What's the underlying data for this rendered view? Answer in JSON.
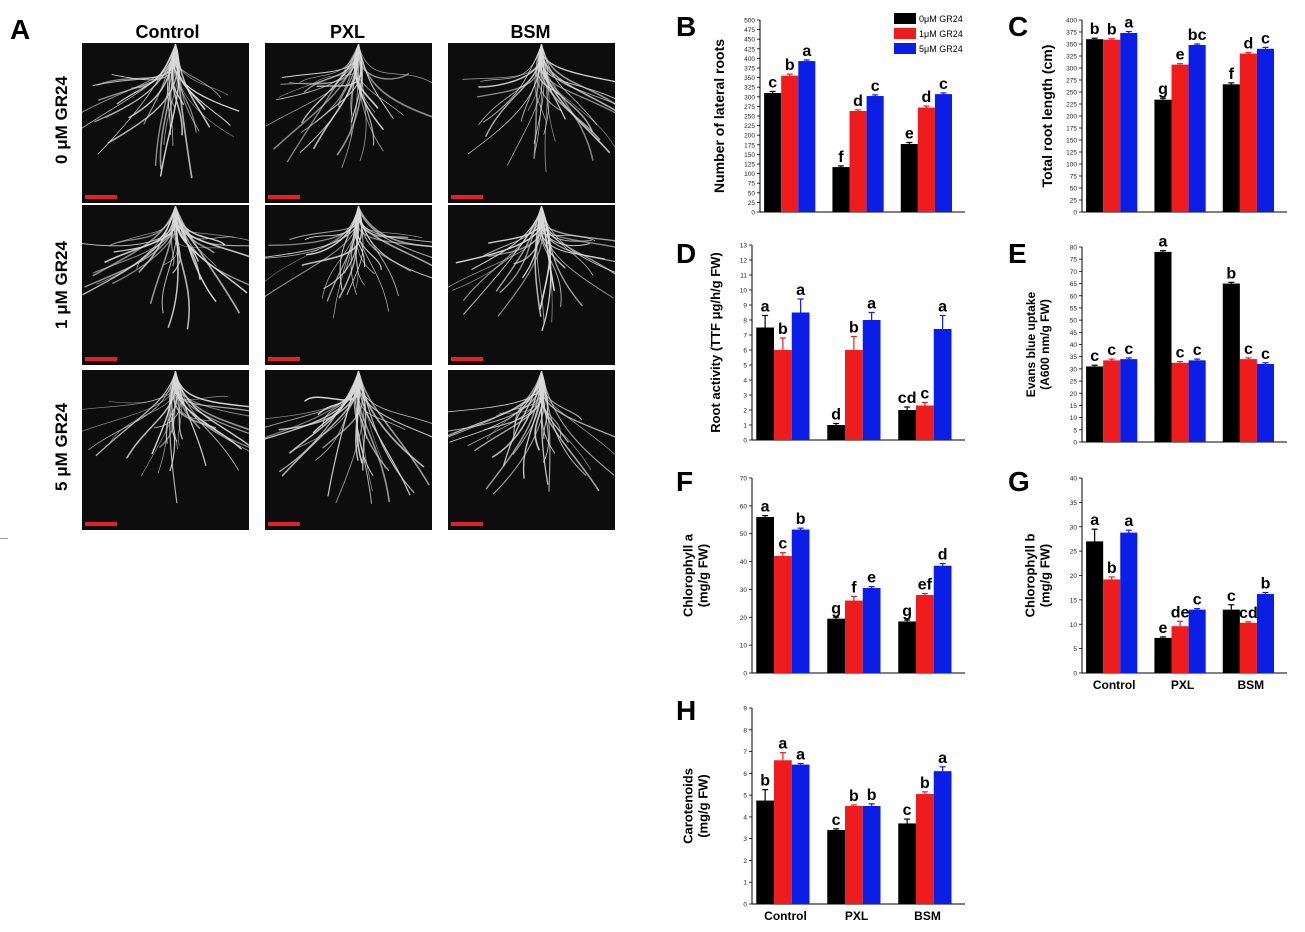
{
  "panel_a": {
    "letter": "A",
    "columns": [
      "Control",
      "PXL",
      "BSM"
    ],
    "rows": [
      "0 μM GR24",
      "1 μM GR24",
      "5 μM GR24"
    ],
    "scale_bar_color": "#e0202a"
  },
  "legend": [
    "0μM GR24",
    "1μM GR24",
    "5μM GR24"
  ],
  "colors": [
    "#000000",
    "#ee1c1c",
    "#0a1ee6"
  ],
  "chart_data": [
    {
      "letter": "B",
      "type": "bar",
      "ylabel": "Number of lateral roots",
      "categories": [
        "Control",
        "PXL",
        "BSM"
      ],
      "ylim": [
        0,
        500
      ],
      "yticks": [
        0,
        25,
        50,
        75,
        100,
        125,
        150,
        175,
        200,
        225,
        250,
        275,
        300,
        325,
        350,
        375,
        400,
        425,
        450,
        475,
        500
      ],
      "series": [
        {
          "name": "0μM GR24",
          "values": [
            310,
            117,
            177
          ],
          "errors": [
            4,
            3,
            4
          ]
        },
        {
          "name": "1μM GR24",
          "values": [
            355,
            263,
            272
          ],
          "errors": [
            4,
            3,
            4
          ]
        },
        {
          "name": "5μM GR24",
          "values": [
            393,
            302,
            307
          ],
          "errors": [
            3,
            3,
            3
          ]
        }
      ],
      "labels": [
        [
          "c",
          "b",
          "a"
        ],
        [
          "f",
          "d",
          "c"
        ],
        [
          "e",
          "d",
          "c"
        ]
      ],
      "show_legend": true
    },
    {
      "letter": "C",
      "type": "bar",
      "ylabel": "Total root length (cm)",
      "categories": [
        "Control",
        "PXL",
        "BSM"
      ],
      "ylim": [
        0,
        400
      ],
      "yticks": [
        0,
        25,
        50,
        75,
        100,
        125,
        150,
        175,
        200,
        225,
        250,
        275,
        300,
        325,
        350,
        375,
        400
      ],
      "series": [
        {
          "name": "0μM GR24",
          "values": [
            360,
            234,
            266
          ],
          "errors": [
            2,
            3,
            3
          ]
        },
        {
          "name": "1μM GR24",
          "values": [
            359,
            307,
            330
          ],
          "errors": [
            2,
            2,
            2
          ]
        },
        {
          "name": "5μM GR24",
          "values": [
            373,
            348,
            340
          ],
          "errors": [
            3,
            2,
            3
          ]
        }
      ],
      "labels": [
        [
          "b",
          "b",
          "a"
        ],
        [
          "g",
          "e",
          "bc"
        ],
        [
          "f",
          "d",
          "c"
        ]
      ]
    },
    {
      "letter": "D",
      "type": "bar",
      "ylabel": "Root activity (TTF μg/h/g FW)",
      "categories": [
        "Control",
        "PXL",
        "BSM"
      ],
      "ylim": [
        0,
        13
      ],
      "yticks": [
        0,
        1,
        2,
        3,
        4,
        5,
        6,
        7,
        8,
        9,
        10,
        11,
        12,
        13
      ],
      "series": [
        {
          "name": "0μM GR24",
          "values": [
            7.5,
            1.0,
            2.0
          ],
          "errors": [
            0.8,
            0.1,
            0.2
          ]
        },
        {
          "name": "1μM GR24",
          "values": [
            6.0,
            6.0,
            2.3
          ],
          "errors": [
            0.8,
            0.9,
            0.2
          ]
        },
        {
          "name": "5μM GR24",
          "values": [
            8.5,
            8.0,
            7.4
          ],
          "errors": [
            0.9,
            0.5,
            0.9
          ]
        }
      ],
      "labels": [
        [
          "a",
          "b",
          "a"
        ],
        [
          "d",
          "b",
          "a"
        ],
        [
          "cd",
          "c",
          "a"
        ]
      ]
    },
    {
      "letter": "E",
      "type": "bar",
      "ylabel": "Evans blue uptake (A600 nm/g FW)",
      "categories": [
        "Control",
        "PXL",
        "BSM"
      ],
      "ylim": [
        0,
        80
      ],
      "yticks": [
        0,
        5,
        10,
        15,
        20,
        25,
        30,
        35,
        40,
        45,
        50,
        55,
        60,
        65,
        70,
        75,
        80
      ],
      "series": [
        {
          "name": "0μM GR24",
          "values": [
            31,
            78,
            65
          ],
          "errors": [
            0.5,
            0.5,
            0.5
          ]
        },
        {
          "name": "1μM GR24",
          "values": [
            33.5,
            32.5,
            34
          ],
          "errors": [
            0.5,
            0.5,
            0.5
          ]
        },
        {
          "name": "5μM GR24",
          "values": [
            34,
            33.5,
            32
          ],
          "errors": [
            0.5,
            0.5,
            0.5
          ]
        }
      ],
      "labels": [
        [
          "c",
          "c",
          "c"
        ],
        [
          "a",
          "c",
          "c"
        ],
        [
          "b",
          "c",
          "c"
        ]
      ]
    },
    {
      "letter": "F",
      "type": "bar",
      "ylabel": "Chlorophyll a (mg/g FW)",
      "categories": [
        "Control",
        "PXL",
        "BSM"
      ],
      "ylim": [
        0,
        70
      ],
      "yticks": [
        0,
        10,
        20,
        30,
        40,
        50,
        60,
        70
      ],
      "series": [
        {
          "name": "0μM GR24",
          "values": [
            56,
            19.5,
            18.5
          ],
          "errors": [
            0.5,
            0.5,
            0.5
          ]
        },
        {
          "name": "1μM GR24",
          "values": [
            42,
            26,
            28
          ],
          "errors": [
            1.2,
            1.5,
            0.5
          ]
        },
        {
          "name": "5μM GR24",
          "values": [
            51.5,
            30.5,
            38.5
          ],
          "errors": [
            0.5,
            0.5,
            0.8
          ]
        }
      ],
      "labels": [
        [
          "a",
          "c",
          "b"
        ],
        [
          "g",
          "f",
          "e"
        ],
        [
          "g",
          "ef",
          "d"
        ]
      ]
    },
    {
      "letter": "G",
      "type": "bar",
      "ylabel": "Chlorophyll b (mg/g FW)",
      "categories": [
        "Control",
        "PXL",
        "BSM"
      ],
      "ylim": [
        0,
        40
      ],
      "yticks": [
        0,
        5,
        10,
        15,
        20,
        25,
        30,
        35,
        40
      ],
      "series": [
        {
          "name": "0μM GR24",
          "values": [
            27,
            7.2,
            13
          ],
          "errors": [
            2.5,
            0.2,
            1.0
          ]
        },
        {
          "name": "1μM GR24",
          "values": [
            19.2,
            9.6,
            10.3
          ],
          "errors": [
            0.5,
            1.0,
            0.2
          ]
        },
        {
          "name": "5μM GR24",
          "values": [
            28.8,
            13,
            16.2
          ],
          "errors": [
            0.5,
            0.2,
            0.3
          ]
        }
      ],
      "labels": [
        [
          "a",
          "b",
          "a"
        ],
        [
          "e",
          "de",
          "c"
        ],
        [
          "c",
          "cd",
          "b"
        ]
      ],
      "show_xticks": true
    },
    {
      "letter": "H",
      "type": "bar",
      "ylabel": "Carotenoids (mg/g FW)",
      "categories": [
        "Control",
        "PXL",
        "BSM"
      ],
      "ylim": [
        0,
        9
      ],
      "yticks": [
        0,
        1,
        2,
        3,
        4,
        5,
        6,
        7,
        8,
        9
      ],
      "series": [
        {
          "name": "0μM GR24",
          "values": [
            4.75,
            3.4,
            3.7
          ],
          "errors": [
            0.5,
            0.05,
            0.2
          ]
        },
        {
          "name": "1μM GR24",
          "values": [
            6.6,
            4.5,
            5.05
          ],
          "errors": [
            0.35,
            0.05,
            0.1
          ]
        },
        {
          "name": "5μM GR24",
          "values": [
            6.4,
            4.5,
            6.1
          ],
          "errors": [
            0.05,
            0.1,
            0.2
          ]
        }
      ],
      "labels": [
        [
          "b",
          "a",
          "a"
        ],
        [
          "c",
          "b",
          "b"
        ],
        [
          "c",
          "b",
          "a"
        ]
      ],
      "show_xticks": true
    }
  ]
}
